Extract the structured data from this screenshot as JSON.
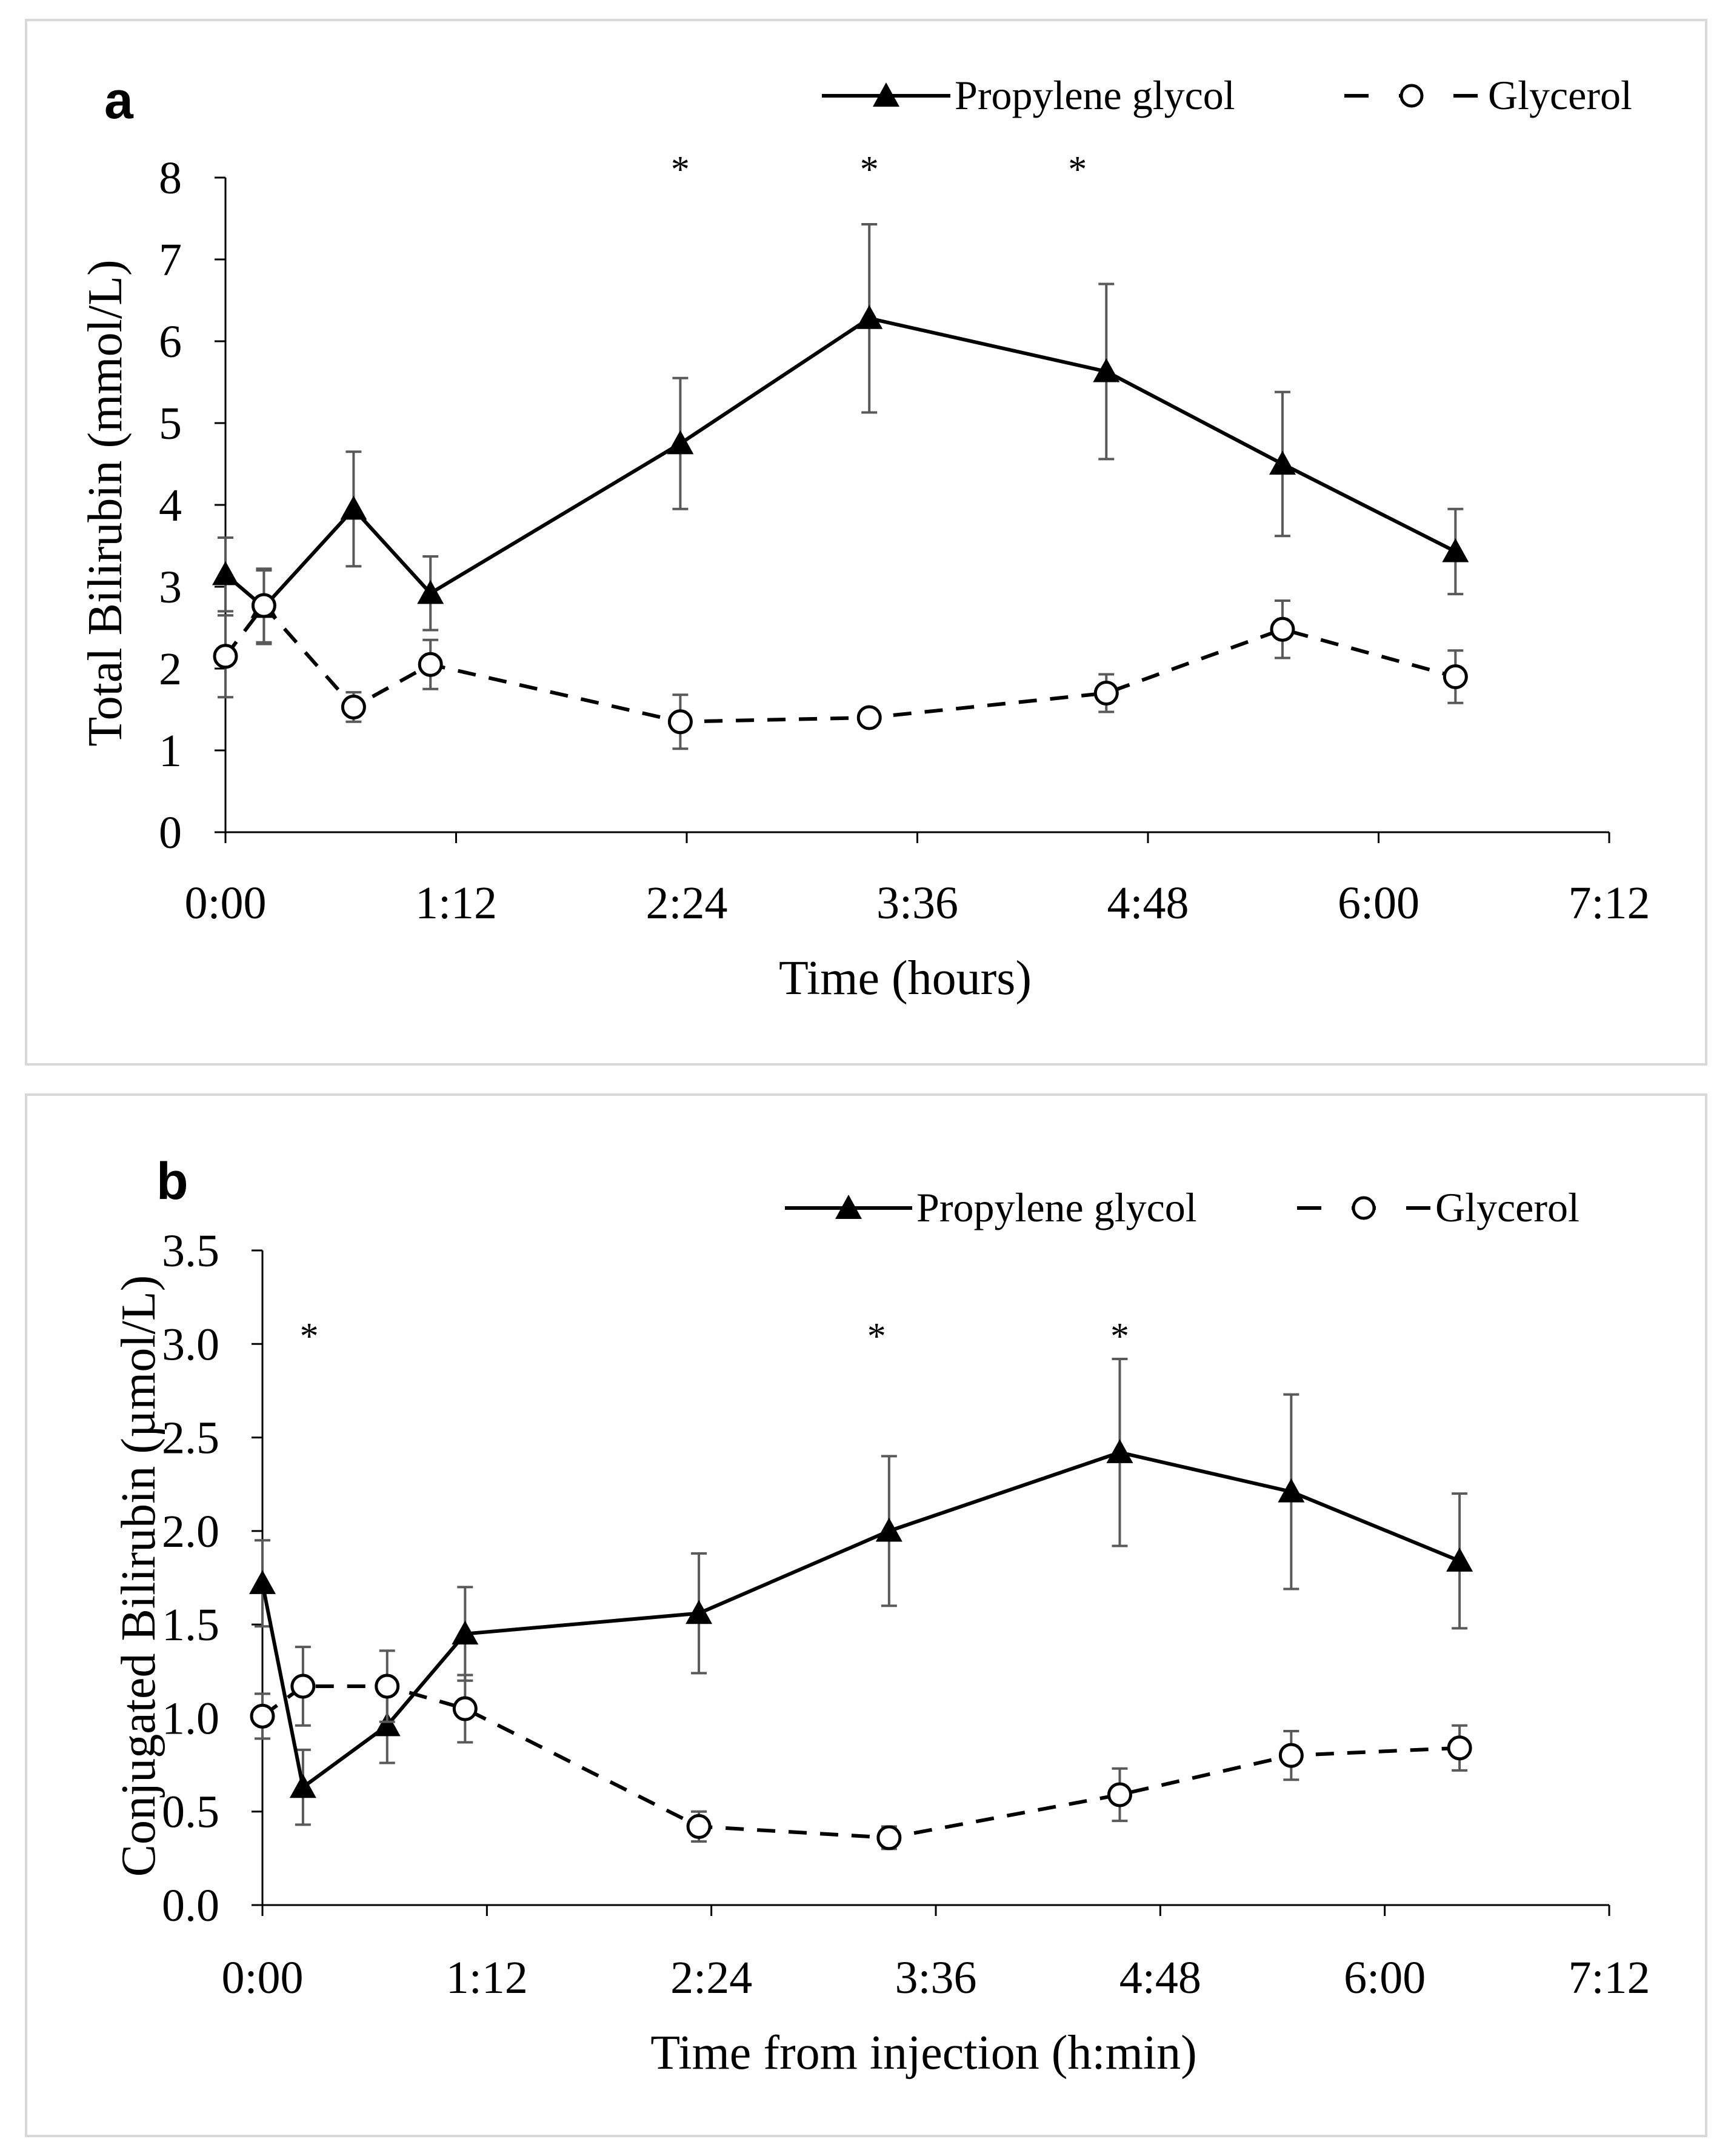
{
  "chart_data": [
    {
      "panel": "a",
      "type": "line",
      "title": "",
      "xlabel": "Time (hours)",
      "ylabel": "Total Bilirubin (mmol/L)",
      "xlim": [
        0,
        432
      ],
      "ylim": [
        0,
        8
      ],
      "xticks": [
        {
          "value": 0,
          "label": "0:00"
        },
        {
          "value": 72,
          "label": "1:12"
        },
        {
          "value": 144,
          "label": "2:24"
        },
        {
          "value": 216,
          "label": "3:36"
        },
        {
          "value": 288,
          "label": "4:48"
        },
        {
          "value": 360,
          "label": "6:00"
        },
        {
          "value": 432,
          "label": "7:12"
        }
      ],
      "yticks": [
        {
          "value": 0,
          "label": "0"
        },
        {
          "value": 1,
          "label": "1"
        },
        {
          "value": 2,
          "label": "2"
        },
        {
          "value": 3,
          "label": "3"
        },
        {
          "value": 4,
          "label": "4"
        },
        {
          "value": 5,
          "label": "5"
        },
        {
          "value": 6,
          "label": "6"
        },
        {
          "value": 7,
          "label": "7"
        },
        {
          "value": 8,
          "label": "8"
        }
      ],
      "legend": [
        "Propylene glycol",
        "Glycerol"
      ],
      "series": [
        {
          "name": "Propylene glycol",
          "style": "solid-triangle",
          "x": [
            0,
            12,
            40,
            64,
            142,
            201,
            275,
            330,
            384
          ],
          "y": [
            3.15,
            2.75,
            3.95,
            2.92,
            4.75,
            6.28,
            5.63,
            4.5,
            3.43
          ],
          "err": [
            0.45,
            0.45,
            0.7,
            0.45,
            0.8,
            1.15,
            1.07,
            0.88,
            0.52
          ]
        },
        {
          "name": "Glycerol",
          "style": "dashed-circle",
          "x": [
            0,
            12,
            40,
            64,
            142,
            201,
            275,
            330,
            384
          ],
          "y": [
            2.15,
            2.77,
            1.53,
            2.05,
            1.35,
            1.4,
            1.7,
            2.48,
            1.9
          ],
          "err": [
            0.5,
            0.45,
            0.18,
            0.3,
            0.33,
            0.06,
            0.23,
            0.35,
            0.32
          ]
        }
      ],
      "significance": [
        {
          "x": 142,
          "label": "*"
        },
        {
          "x": 201,
          "label": "*"
        },
        {
          "x": 266,
          "label": "*"
        }
      ]
    },
    {
      "panel": "b",
      "type": "line",
      "title": "",
      "xlabel": "Time from injection (h:min)",
      "ylabel": "Conjugated Bilirubin (µmol/L)",
      "xlim": [
        0,
        432
      ],
      "ylim": [
        0,
        3.5
      ],
      "xticks": [
        {
          "value": 0,
          "label": "0:00"
        },
        {
          "value": 72,
          "label": "1:12"
        },
        {
          "value": 144,
          "label": "2:24"
        },
        {
          "value": 216,
          "label": "3:36"
        },
        {
          "value": 288,
          "label": "4:48"
        },
        {
          "value": 360,
          "label": "6:00"
        },
        {
          "value": 432,
          "label": "7:12"
        }
      ],
      "yticks": [
        {
          "value": 0,
          "label": "0.0"
        },
        {
          "value": 0.5,
          "label": "0.5"
        },
        {
          "value": 1,
          "label": "1.0"
        },
        {
          "value": 1.5,
          "label": "1.5"
        },
        {
          "value": 2,
          "label": "2.0"
        },
        {
          "value": 2.5,
          "label": "2.5"
        },
        {
          "value": 3,
          "label": "3.0"
        },
        {
          "value": 3.5,
          "label": "3.5"
        }
      ],
      "legend": [
        "Propylene glycol",
        "Glycerol"
      ],
      "series": [
        {
          "name": "Propylene glycol",
          "style": "solid-triangle",
          "x": [
            0,
            13,
            40,
            65,
            140,
            201,
            275,
            330,
            384
          ],
          "y": [
            1.72,
            0.63,
            0.96,
            1.45,
            1.56,
            2.0,
            2.42,
            2.21,
            1.84
          ],
          "err": [
            0.23,
            0.2,
            0.2,
            0.25,
            0.32,
            0.4,
            0.5,
            0.52,
            0.36
          ]
        },
        {
          "name": "Glycerol",
          "style": "dashed-circle",
          "x": [
            0,
            13,
            40,
            65,
            140,
            201,
            275,
            330,
            384
          ],
          "y": [
            1.01,
            1.17,
            1.17,
            1.05,
            0.42,
            0.36,
            0.59,
            0.8,
            0.84
          ],
          "err": [
            0.12,
            0.21,
            0.19,
            0.18,
            0.08,
            0.06,
            0.14,
            0.13,
            0.12
          ]
        }
      ],
      "significance": [
        {
          "x": 15,
          "label": "*"
        },
        {
          "x": 197,
          "label": "*"
        },
        {
          "x": 275,
          "label": "*"
        }
      ]
    }
  ]
}
